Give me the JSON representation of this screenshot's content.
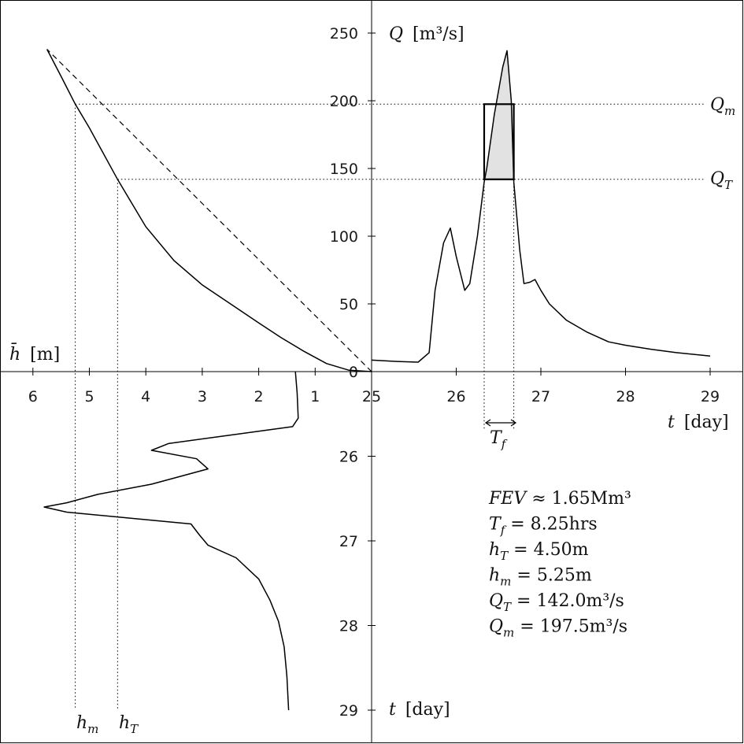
{
  "chart_data": [
    {
      "type": "line",
      "panel": "discharge-hydrograph",
      "xlabel": "t [day]",
      "ylabel": "Q [m³/s]",
      "xlim": [
        25,
        29
      ],
      "ylim": [
        0,
        250
      ],
      "x_ticks": [
        "25",
        "26",
        "27",
        "28",
        "29"
      ],
      "y_ticks": [
        "0",
        "50",
        "100",
        "150",
        "200",
        "250"
      ],
      "series": [
        {
          "points": [
            [
              25.0,
              8.5
            ],
            [
              25.3,
              7.5
            ],
            [
              25.55,
              7.0
            ],
            [
              25.68,
              14
            ],
            [
              25.75,
              60
            ],
            [
              25.85,
              95
            ],
            [
              25.93,
              106
            ],
            [
              26.0,
              85
            ],
            [
              26.1,
              60
            ],
            [
              26.16,
              65
            ],
            [
              26.25,
              100
            ],
            [
              26.33,
              140
            ],
            [
              26.36,
              150
            ],
            [
              26.45,
              190
            ],
            [
              26.55,
              225
            ],
            [
              26.6,
              237
            ],
            [
              26.65,
              200
            ],
            [
              26.68,
              140
            ],
            [
              26.75,
              90
            ],
            [
              26.8,
              65
            ],
            [
              26.87,
              66
            ],
            [
              26.93,
              68
            ],
            [
              27.0,
              60
            ],
            [
              27.1,
              50
            ],
            [
              27.3,
              38
            ],
            [
              27.55,
              29
            ],
            [
              27.8,
              22
            ],
            [
              28.0,
              19.5
            ],
            [
              28.3,
              16.5
            ],
            [
              28.6,
              14
            ],
            [
              29.0,
              11.5
            ]
          ]
        }
      ],
      "reference_lines": [
        {
          "label": "Q_m",
          "value": 197.5
        },
        {
          "label": "Q_T",
          "value": 142.0
        }
      ],
      "shaded_interval": {
        "t_start": 26.33,
        "t_end": 26.68,
        "label": "T_f"
      }
    },
    {
      "type": "line",
      "panel": "rating-curve",
      "xlabel": "h̄ [m]",
      "ylabel": "Q [m³/s]",
      "xlim": [
        6.0,
        0.0
      ],
      "x_ticks": [
        "6",
        "5",
        "4",
        "3",
        "2",
        "1",
        "0"
      ],
      "series": [
        {
          "points": [
            [
              0.0,
              0
            ],
            [
              0.4,
              1
            ],
            [
              0.8,
              6
            ],
            [
              1.2,
              15
            ],
            [
              1.6,
              25
            ],
            [
              2.0,
              36
            ],
            [
              2.5,
              50
            ],
            [
              3.0,
              64
            ],
            [
              3.5,
              82
            ],
            [
              4.0,
              107
            ],
            [
              4.5,
              142
            ],
            [
              5.0,
              180
            ],
            [
              5.25,
              197.5
            ],
            [
              5.5,
              218
            ],
            [
              5.75,
              238
            ]
          ]
        },
        {
          "style": "dashed",
          "points": [
            [
              0.0,
              0
            ],
            [
              5.75,
              238
            ]
          ]
        }
      ],
      "reference_lines": [
        {
          "label": "h_m",
          "value": 5.25
        },
        {
          "label": "h_T",
          "value": 4.5
        }
      ]
    },
    {
      "type": "line",
      "panel": "stage-hydrograph",
      "xlabel": "h̄ [m]",
      "ylabel": "t [day]",
      "ylim": [
        25,
        29
      ],
      "y_ticks": [
        "26",
        "27",
        "28",
        "29"
      ],
      "series": [
        {
          "points": [
            [
              1.35,
              25.0
            ],
            [
              1.32,
              25.25
            ],
            [
              1.3,
              25.55
            ],
            [
              1.4,
              25.65
            ],
            [
              2.5,
              25.75
            ],
            [
              3.6,
              25.85
            ],
            [
              3.9,
              25.93
            ],
            [
              3.1,
              26.03
            ],
            [
              2.9,
              26.15
            ],
            [
              3.9,
              26.33
            ],
            [
              4.85,
              26.45
            ],
            [
              5.4,
              26.55
            ],
            [
              5.8,
              26.6
            ],
            [
              5.4,
              26.66
            ],
            [
              4.3,
              26.73
            ],
            [
              3.2,
              26.8
            ],
            [
              3.05,
              26.93
            ],
            [
              2.9,
              27.05
            ],
            [
              2.4,
              27.2
            ],
            [
              2.0,
              27.45
            ],
            [
              1.8,
              27.7
            ],
            [
              1.65,
              27.95
            ],
            [
              1.55,
              28.25
            ],
            [
              1.5,
              28.6
            ],
            [
              1.47,
              29.0
            ]
          ]
        }
      ]
    }
  ],
  "labels": {
    "q_axis_label": "Q",
    "q_axis_unit": "[m³/s]",
    "t_axis_label": "t",
    "t_axis_unit": "[day]",
    "h_axis_label": "h̄",
    "h_axis_unit": "[m]",
    "q_m": "Q",
    "q_m_sub": "m",
    "q_t": "Q",
    "q_t_sub": "T",
    "t_f": "T",
    "t_f_sub": "f",
    "h_m": "h",
    "h_m_sub": "m",
    "h_t": "h",
    "h_t_sub": "T"
  },
  "annotations": [
    {
      "lhs": "FEV",
      "lhs_sub": "",
      "rel": " ≈ ",
      "value": "1.65Mm³"
    },
    {
      "lhs": "T",
      "lhs_sub": "f",
      "rel": " = ",
      "value": "8.25hrs"
    },
    {
      "lhs": "h",
      "lhs_sub": "T",
      "rel": " = ",
      "value": "4.50m"
    },
    {
      "lhs": "h",
      "lhs_sub": "m",
      "rel": " = ",
      "value": "5.25m"
    },
    {
      "lhs": "Q",
      "lhs_sub": "T",
      "rel": " = ",
      "value": "142.0m³/s"
    },
    {
      "lhs": "Q",
      "lhs_sub": "m",
      "rel": " = ",
      "value": "197.5m³/s"
    }
  ]
}
